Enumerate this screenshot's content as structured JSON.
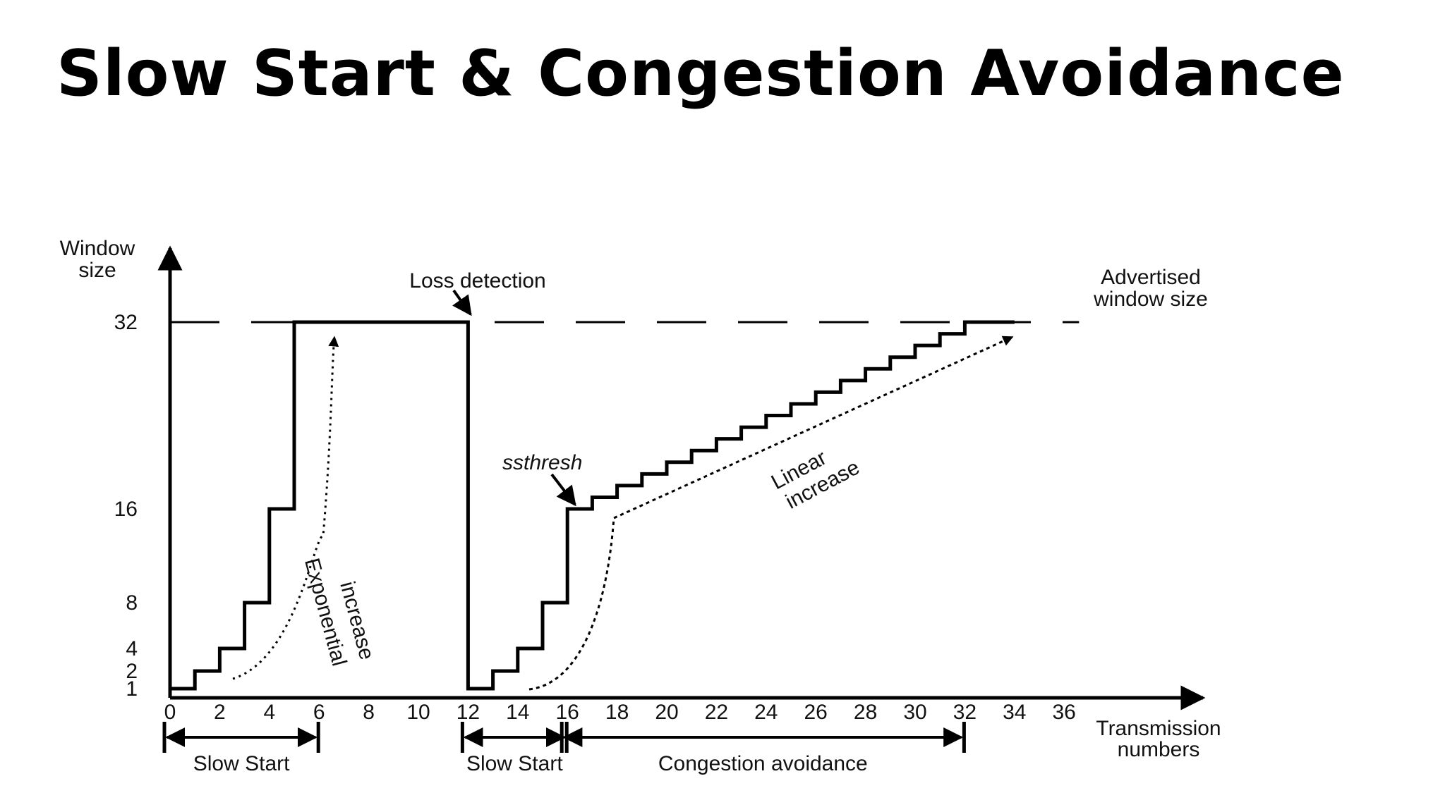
{
  "slide_title": "Slow Start & Congestion Avoidance",
  "chart_data": {
    "type": "line",
    "title": "",
    "ylabel_lines": [
      "Window",
      "size"
    ],
    "xlabel_lines": [
      "Transmission",
      "numbers"
    ],
    "xlim": [
      0,
      36
    ],
    "ylim_ticks": [
      1,
      2,
      4,
      8,
      16,
      32
    ],
    "x_ticks": [
      0,
      2,
      4,
      6,
      8,
      10,
      12,
      14,
      16,
      18,
      20,
      22,
      24,
      26,
      28,
      30,
      32,
      34,
      36
    ],
    "window_series": [
      [
        0,
        1
      ],
      [
        1,
        1
      ],
      [
        1,
        2
      ],
      [
        2,
        2
      ],
      [
        2,
        4
      ],
      [
        3,
        4
      ],
      [
        3,
        8
      ],
      [
        4,
        8
      ],
      [
        4,
        16
      ],
      [
        5,
        16
      ],
      [
        5,
        32
      ],
      [
        12,
        32
      ],
      [
        12,
        1
      ],
      [
        13,
        1
      ],
      [
        13,
        2
      ],
      [
        14,
        2
      ],
      [
        14,
        4
      ],
      [
        15,
        4
      ],
      [
        15,
        8
      ],
      [
        16,
        8
      ],
      [
        16,
        16
      ],
      [
        17,
        16
      ],
      [
        17,
        17
      ],
      [
        18,
        17
      ],
      [
        18,
        18
      ],
      [
        19,
        18
      ],
      [
        19,
        19
      ],
      [
        20,
        19
      ],
      [
        20,
        20
      ],
      [
        21,
        20
      ],
      [
        21,
        21
      ],
      [
        22,
        21
      ],
      [
        22,
        22
      ],
      [
        23,
        22
      ],
      [
        23,
        23
      ],
      [
        24,
        23
      ],
      [
        24,
        24
      ],
      [
        25,
        24
      ],
      [
        25,
        25
      ],
      [
        26,
        25
      ],
      [
        26,
        26
      ],
      [
        27,
        26
      ],
      [
        27,
        27
      ],
      [
        28,
        27
      ],
      [
        28,
        28
      ],
      [
        29,
        28
      ],
      [
        29,
        29
      ],
      [
        30,
        29
      ],
      [
        30,
        30
      ],
      [
        31,
        30
      ],
      [
        31,
        31
      ],
      [
        32,
        31
      ],
      [
        32,
        32
      ],
      [
        34,
        32
      ]
    ],
    "advertised_window": 32,
    "annotations": {
      "loss_detection": "Loss detection",
      "advertised": [
        "Advertised",
        "window size"
      ],
      "ssthresh": "ssthresh",
      "exponential": [
        "Exponential",
        "increase"
      ],
      "linear": [
        "Linear",
        "increase"
      ]
    },
    "phases": [
      {
        "label": "Slow Start",
        "x_start": 0,
        "x_end": 6
      },
      {
        "label": "Slow Start",
        "x_start": 12,
        "x_end": 16
      },
      {
        "label": "Congestion avoidance",
        "x_start": 16,
        "x_end": 32
      }
    ]
  }
}
